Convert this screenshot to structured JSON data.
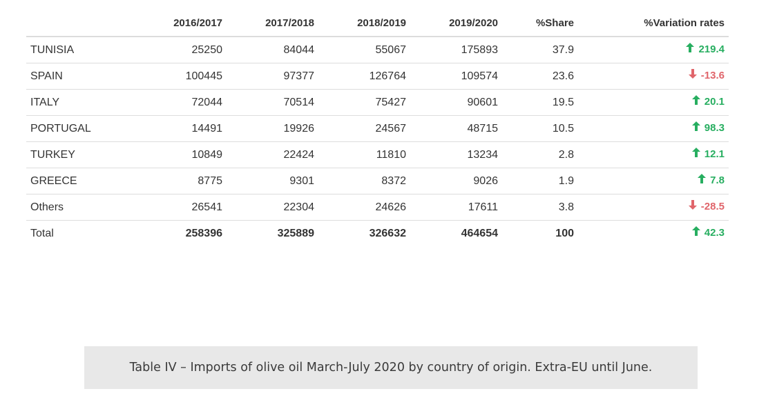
{
  "table": {
    "headers": [
      "",
      "2016/2017",
      "2017/2018",
      "2018/2019",
      "2019/2020",
      "%Share",
      "%Variation rates"
    ],
    "rows": [
      {
        "country": "TUNISIA",
        "y1617": "25250",
        "y1718": "84044",
        "y1819": "55067",
        "y1920": "175893",
        "share": "37.9",
        "variation": "219.4",
        "direction": "up"
      },
      {
        "country": "SPAIN",
        "y1617": "100445",
        "y1718": "97377",
        "y1819": "126764",
        "y1920": "109574",
        "share": "23.6",
        "variation": "-13.6",
        "direction": "down"
      },
      {
        "country": "ITALY",
        "y1617": "72044",
        "y1718": "70514",
        "y1819": "75427",
        "y1920": "90601",
        "share": "19.5",
        "variation": "20.1",
        "direction": "up"
      },
      {
        "country": "PORTUGAL",
        "y1617": "14491",
        "y1718": "19926",
        "y1819": "24567",
        "y1920": "48715",
        "share": "10.5",
        "variation": "98.3",
        "direction": "up"
      },
      {
        "country": "TURKEY",
        "y1617": "10849",
        "y1718": "22424",
        "y1819": "11810",
        "y1920": "13234",
        "share": "2.8",
        "variation": "12.1",
        "direction": "up"
      },
      {
        "country": "GREECE",
        "y1617": "8775",
        "y1718": "9301",
        "y1819": "8372",
        "y1920": "9026",
        "share": "1.9",
        "variation": "7.8",
        "direction": "up"
      },
      {
        "country": "Others",
        "y1617": "26541",
        "y1718": "22304",
        "y1819": "24626",
        "y1920": "17611",
        "share": "3.8",
        "variation": "-28.5",
        "direction": "down"
      },
      {
        "country": "Total",
        "y1617": "258396",
        "y1718": "325889",
        "y1819": "326632",
        "y1920": "464654",
        "share": "100",
        "variation": "42.3",
        "direction": "up"
      }
    ]
  },
  "colors": {
    "up": "#27ae60",
    "down": "#e0656b",
    "caption_background": "#e8e8e8"
  },
  "icons": {
    "up": "arrow-up-icon",
    "down": "arrow-down-icon"
  },
  "caption": "Table IV – Imports of olive oil March-July 2020 by country of origin. Extra-EU until June."
}
